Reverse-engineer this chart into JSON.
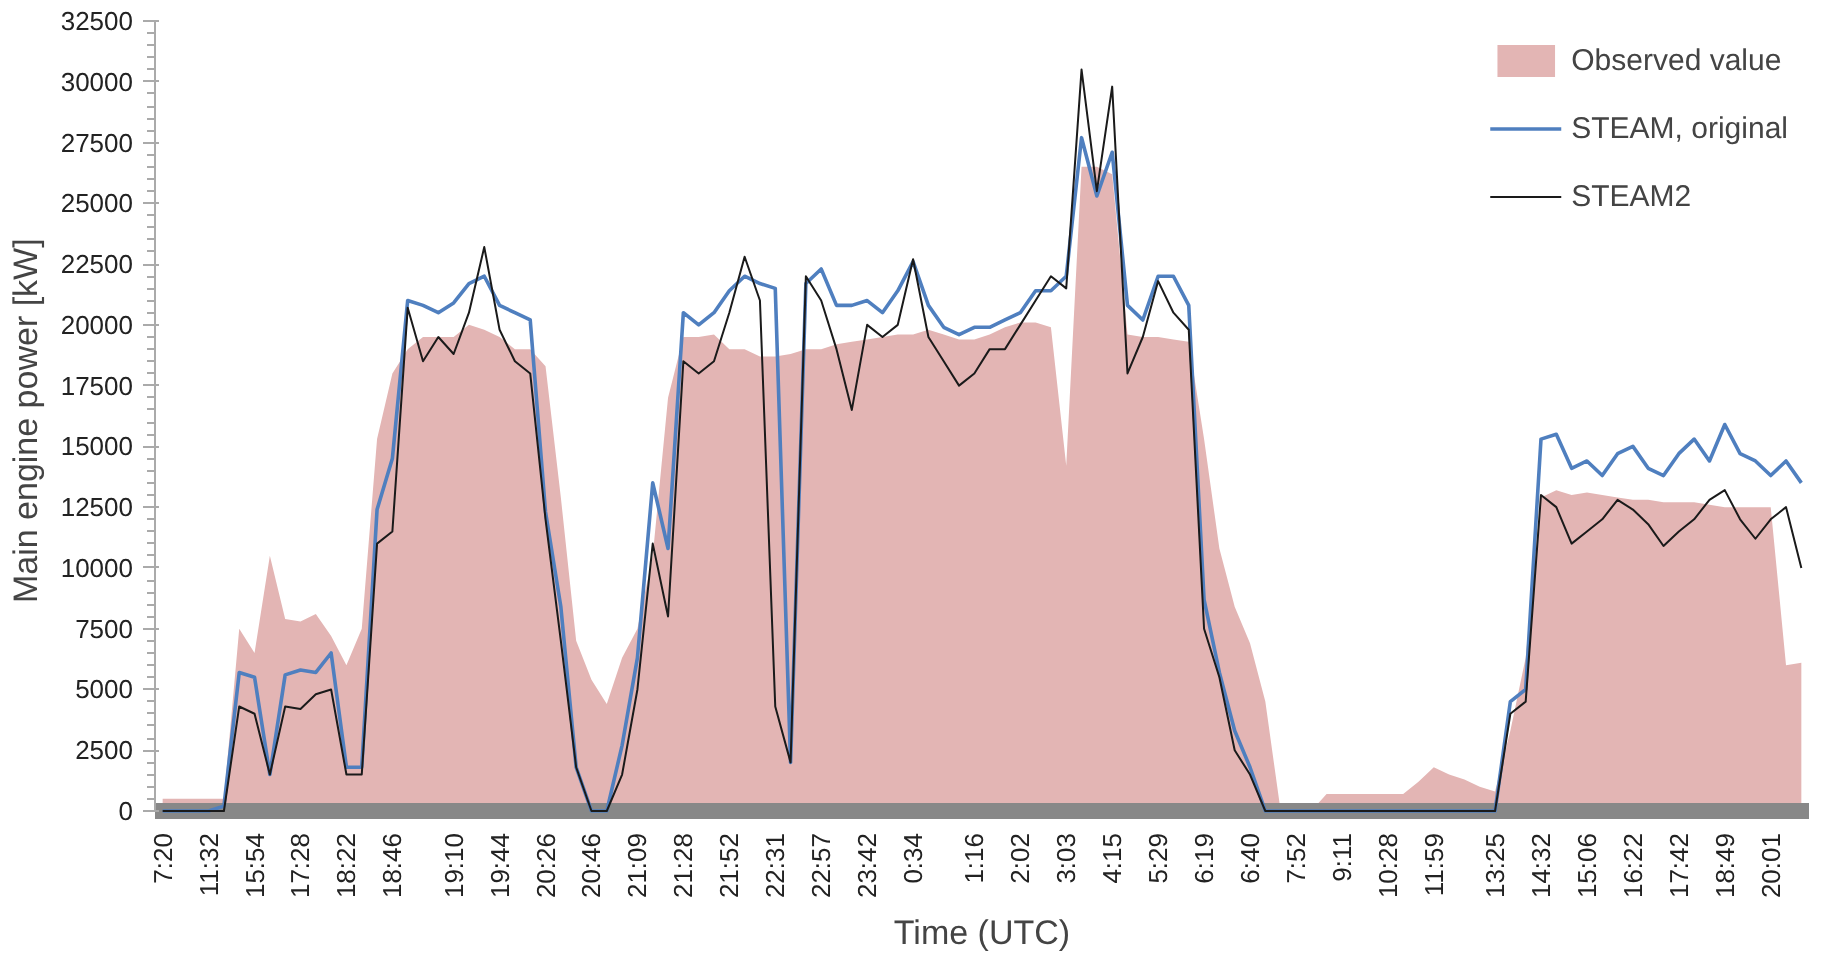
{
  "chart_data": {
    "type": "line",
    "xlabel": "Time (UTC)",
    "ylabel": "Main engine power  [kW]",
    "categories": [
      "7:20",
      null,
      null,
      "11:32",
      null,
      null,
      "15:54",
      null,
      null,
      "17:28",
      null,
      null,
      "18:22",
      null,
      null,
      "18:46",
      null,
      null,
      null,
      "19:10",
      null,
      null,
      "19:44",
      null,
      null,
      "20:26",
      null,
      null,
      "20:46",
      null,
      null,
      "21:09",
      null,
      null,
      "21:28",
      null,
      null,
      "21:52",
      null,
      null,
      "22:31",
      null,
      null,
      "22:57",
      null,
      null,
      "23:42",
      null,
      null,
      "0:34",
      null,
      null,
      null,
      "1:16",
      null,
      null,
      "2:02",
      null,
      null,
      "3:03",
      null,
      null,
      "4:15",
      null,
      null,
      "5:29",
      null,
      null,
      "6:19",
      null,
      null,
      "6:40",
      null,
      null,
      "7:52",
      null,
      null,
      "9:11",
      null,
      null,
      "10:28",
      null,
      null,
      "11:59",
      null,
      null,
      null,
      "13:25",
      null,
      null,
      "14:32",
      null,
      null,
      "15:06",
      null,
      null,
      "16:22",
      null,
      null,
      "17:42",
      null,
      null,
      "18:49",
      null,
      null,
      "20:01",
      null,
      null
    ],
    "series": [
      {
        "name": "Observed value",
        "type": "area",
        "color": "#e3b5b4",
        "values": [
          500,
          500,
          500,
          500,
          500,
          7500,
          6500,
          10500,
          7900,
          7800,
          8100,
          7200,
          6000,
          7500,
          15300,
          18000,
          19000,
          19500,
          19500,
          19500,
          20000,
          19800,
          19500,
          19000,
          19000,
          18300,
          12900,
          7000,
          5400,
          4400,
          6300,
          7500,
          10500,
          17000,
          19500,
          19500,
          19600,
          19000,
          19000,
          18700,
          18700,
          18800,
          19000,
          19000,
          19200,
          19300,
          19400,
          19500,
          19600,
          19600,
          19800,
          19600,
          19400,
          19400,
          19600,
          19900,
          20100,
          20100,
          19900,
          14200,
          26500,
          26500,
          26200,
          19600,
          19500,
          19500,
          19400,
          19300,
          15300,
          10800,
          8400,
          6900,
          4500,
          0,
          0,
          0,
          700,
          700,
          700,
          700,
          700,
          700,
          1200,
          1800,
          1500,
          1300,
          1000,
          800,
          3300,
          6300,
          12900,
          13200,
          13000,
          13100,
          13000,
          12900,
          12800,
          12800,
          12700,
          12700,
          12700,
          12600,
          12500,
          12500,
          12500,
          12500,
          6000,
          6100
        ]
      },
      {
        "name": "STEAM, original",
        "color": "#4f7fbf",
        "values": [
          0,
          0,
          0,
          0,
          200,
          5700,
          5500,
          1500,
          5600,
          5800,
          5700,
          6500,
          1800,
          1800,
          12400,
          14500,
          21000,
          20800,
          20500,
          20900,
          21700,
          22000,
          20800,
          20500,
          20200,
          12300,
          8400,
          1800,
          0,
          0,
          2700,
          6300,
          13500,
          10800,
          20500,
          20000,
          20500,
          21400,
          22000,
          21700,
          21500,
          2000,
          21700,
          22300,
          20800,
          20800,
          21000,
          20500,
          21400,
          22600,
          20800,
          19900,
          19600,
          19900,
          19900,
          20200,
          20500,
          21400,
          21400,
          22000,
          27700,
          25300,
          27100,
          20800,
          20200,
          22000,
          22000,
          20800,
          8700,
          5700,
          3300,
          1800,
          0,
          0,
          0,
          0,
          0,
          0,
          0,
          0,
          0,
          0,
          0,
          0,
          0,
          0,
          0,
          0,
          4500,
          5000,
          15300,
          15500,
          14100,
          14400,
          13800,
          14700,
          15000,
          14100,
          13800,
          14700,
          15300,
          14400,
          15900,
          14700,
          14400,
          13800,
          14400,
          13500
        ]
      },
      {
        "name": "STEAM2",
        "color": "#1a1a1a",
        "values": [
          0,
          0,
          0,
          0,
          0,
          4300,
          4000,
          1500,
          4300,
          4200,
          4800,
          5000,
          1500,
          1500,
          11000,
          11500,
          20700,
          18500,
          19500,
          18800,
          20500,
          23200,
          19800,
          18500,
          18000,
          12000,
          7000,
          1800,
          0,
          0,
          1500,
          5000,
          11000,
          8000,
          18500,
          18000,
          18500,
          20500,
          22800,
          21000,
          4300,
          2000,
          22000,
          21000,
          19000,
          16500,
          20000,
          19500,
          20000,
          22700,
          19500,
          18500,
          17500,
          18000,
          19000,
          19000,
          20000,
          21000,
          22000,
          21500,
          30500,
          25500,
          29800,
          18000,
          19500,
          21800,
          20500,
          19800,
          7500,
          5500,
          2500,
          1500,
          0,
          0,
          0,
          0,
          0,
          0,
          0,
          0,
          0,
          0,
          0,
          0,
          0,
          0,
          0,
          0,
          4000,
          4500,
          13000,
          12500,
          11000,
          11500,
          12000,
          12800,
          12400,
          11800,
          10900,
          11500,
          12000,
          12800,
          13200,
          12000,
          11200,
          12000,
          12500,
          10000
        ]
      }
    ],
    "ylim": [
      0,
      32500
    ],
    "yticks": [
      0,
      2500,
      5000,
      7500,
      10000,
      12500,
      15000,
      17500,
      20000,
      22500,
      25000,
      27500,
      30000,
      32500
    ],
    "grid": false,
    "legend": "top right"
  }
}
